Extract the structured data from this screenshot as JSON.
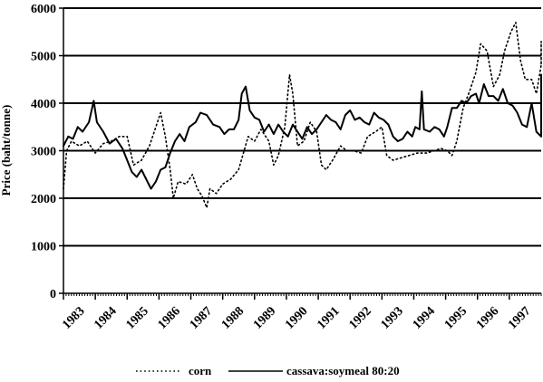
{
  "chart_data": {
    "type": "line",
    "ylabel": "Price (baht/tonne)",
    "xlabel": "",
    "ylim": [
      0,
      6000
    ],
    "yticks": [
      0,
      1000,
      2000,
      3000,
      4000,
      5000,
      6000
    ],
    "ytick_labels": [
      "0",
      "1000",
      "2000",
      "3000",
      "4000",
      "5000",
      "6000"
    ],
    "xlim": [
      1983,
      1998
    ],
    "xticks": [
      1983,
      1984,
      1985,
      1986,
      1987,
      1988,
      1989,
      1990,
      1991,
      1992,
      1993,
      1994,
      1995,
      1996,
      1997
    ],
    "xtick_labels": [
      "1983",
      "1984",
      "1985",
      "1986",
      "1987",
      "1988",
      "1989",
      "1990",
      "1991",
      "1992",
      "1993",
      "1994",
      "1995",
      "1996",
      "1997"
    ],
    "grid": "horizontal",
    "legend_position": "bottom",
    "series": [
      {
        "name": "corn",
        "style": "dotted",
        "color": "#000000",
        "points": [
          [
            1983.0,
            2200
          ],
          [
            1983.1,
            3000
          ],
          [
            1983.25,
            3200
          ],
          [
            1983.5,
            3100
          ],
          [
            1983.75,
            3200
          ],
          [
            1984.0,
            2950
          ],
          [
            1984.25,
            3150
          ],
          [
            1984.5,
            3200
          ],
          [
            1984.75,
            3300
          ],
          [
            1985.0,
            3300
          ],
          [
            1985.2,
            2700
          ],
          [
            1985.45,
            2800
          ],
          [
            1985.7,
            3100
          ],
          [
            1985.9,
            3500
          ],
          [
            1986.05,
            3800
          ],
          [
            1986.2,
            3300
          ],
          [
            1986.35,
            2600
          ],
          [
            1986.45,
            2000
          ],
          [
            1986.6,
            2350
          ],
          [
            1986.85,
            2300
          ],
          [
            1987.05,
            2500
          ],
          [
            1987.2,
            2200
          ],
          [
            1987.35,
            2050
          ],
          [
            1987.5,
            1800
          ],
          [
            1987.6,
            2200
          ],
          [
            1987.8,
            2100
          ],
          [
            1988.0,
            2300
          ],
          [
            1988.25,
            2400
          ],
          [
            1988.5,
            2600
          ],
          [
            1988.8,
            3300
          ],
          [
            1989.0,
            3200
          ],
          [
            1989.2,
            3450
          ],
          [
            1989.45,
            3200
          ],
          [
            1989.6,
            2700
          ],
          [
            1989.75,
            2900
          ],
          [
            1989.95,
            3500
          ],
          [
            1990.1,
            4600
          ],
          [
            1990.2,
            4200
          ],
          [
            1990.35,
            3100
          ],
          [
            1990.55,
            3200
          ],
          [
            1990.75,
            3600
          ],
          [
            1990.95,
            3400
          ],
          [
            1991.1,
            2700
          ],
          [
            1991.25,
            2600
          ],
          [
            1991.45,
            2800
          ],
          [
            1991.7,
            3100
          ],
          [
            1991.9,
            3000
          ],
          [
            1992.1,
            3000
          ],
          [
            1992.35,
            2950
          ],
          [
            1992.55,
            3300
          ],
          [
            1992.8,
            3400
          ],
          [
            1993.0,
            3500
          ],
          [
            1993.15,
            2900
          ],
          [
            1993.35,
            2800
          ],
          [
            1993.6,
            2850
          ],
          [
            1993.85,
            2900
          ],
          [
            1994.1,
            2950
          ],
          [
            1994.4,
            2950
          ],
          [
            1994.65,
            3000
          ],
          [
            1994.85,
            3050
          ],
          [
            1995.05,
            3000
          ],
          [
            1995.2,
            2900
          ],
          [
            1995.35,
            3200
          ],
          [
            1995.55,
            3900
          ],
          [
            1995.75,
            4250
          ],
          [
            1995.95,
            4650
          ],
          [
            1996.1,
            5250
          ],
          [
            1996.3,
            5100
          ],
          [
            1996.5,
            4350
          ],
          [
            1996.7,
            4600
          ],
          [
            1996.85,
            5100
          ],
          [
            1997.05,
            5500
          ],
          [
            1997.2,
            5700
          ],
          [
            1997.35,
            4900
          ],
          [
            1997.5,
            4500
          ],
          [
            1997.7,
            4500
          ],
          [
            1997.85,
            4200
          ],
          [
            1998.0,
            4800
          ],
          [
            1998.2,
            5300
          ],
          [
            1998.45,
            4800
          ]
        ]
      },
      {
        "name": "cassava:soymeal 80:20",
        "style": "solid",
        "color": "#000000",
        "points": [
          [
            1983.0,
            3100
          ],
          [
            1983.15,
            3300
          ],
          [
            1983.3,
            3250
          ],
          [
            1983.45,
            3500
          ],
          [
            1983.6,
            3400
          ],
          [
            1983.8,
            3600
          ],
          [
            1983.95,
            4050
          ],
          [
            1984.05,
            3600
          ],
          [
            1984.25,
            3400
          ],
          [
            1984.45,
            3150
          ],
          [
            1984.65,
            3250
          ],
          [
            1984.85,
            3050
          ],
          [
            1985.0,
            2800
          ],
          [
            1985.15,
            2550
          ],
          [
            1985.3,
            2450
          ],
          [
            1985.45,
            2600
          ],
          [
            1985.6,
            2400
          ],
          [
            1985.75,
            2200
          ],
          [
            1985.9,
            2350
          ],
          [
            1986.05,
            2600
          ],
          [
            1986.2,
            2650
          ],
          [
            1986.35,
            2950
          ],
          [
            1986.5,
            3200
          ],
          [
            1986.65,
            3350
          ],
          [
            1986.8,
            3200
          ],
          [
            1986.95,
            3500
          ],
          [
            1987.15,
            3600
          ],
          [
            1987.3,
            3800
          ],
          [
            1987.5,
            3750
          ],
          [
            1987.7,
            3550
          ],
          [
            1987.9,
            3500
          ],
          [
            1988.05,
            3350
          ],
          [
            1988.2,
            3450
          ],
          [
            1988.35,
            3450
          ],
          [
            1988.5,
            3650
          ],
          [
            1988.6,
            4200
          ],
          [
            1988.72,
            4350
          ],
          [
            1988.85,
            3850
          ],
          [
            1989.0,
            3700
          ],
          [
            1989.15,
            3650
          ],
          [
            1989.3,
            3400
          ],
          [
            1989.45,
            3550
          ],
          [
            1989.6,
            3350
          ],
          [
            1989.75,
            3550
          ],
          [
            1989.9,
            3400
          ],
          [
            1990.05,
            3300
          ],
          [
            1990.2,
            3550
          ],
          [
            1990.35,
            3400
          ],
          [
            1990.5,
            3250
          ],
          [
            1990.65,
            3500
          ],
          [
            1990.8,
            3350
          ],
          [
            1990.95,
            3450
          ],
          [
            1991.1,
            3600
          ],
          [
            1991.25,
            3750
          ],
          [
            1991.4,
            3650
          ],
          [
            1991.55,
            3600
          ],
          [
            1991.7,
            3450
          ],
          [
            1991.85,
            3750
          ],
          [
            1992.0,
            3850
          ],
          [
            1992.15,
            3650
          ],
          [
            1992.3,
            3700
          ],
          [
            1992.45,
            3600
          ],
          [
            1992.6,
            3550
          ],
          [
            1992.75,
            3800
          ],
          [
            1992.9,
            3700
          ],
          [
            1993.05,
            3650
          ],
          [
            1993.2,
            3550
          ],
          [
            1993.35,
            3300
          ],
          [
            1993.5,
            3200
          ],
          [
            1993.65,
            3250
          ],
          [
            1993.8,
            3400
          ],
          [
            1993.95,
            3300
          ],
          [
            1994.05,
            3500
          ],
          [
            1994.18,
            3450
          ],
          [
            1994.25,
            4250
          ],
          [
            1994.32,
            3450
          ],
          [
            1994.5,
            3400
          ],
          [
            1994.65,
            3500
          ],
          [
            1994.8,
            3450
          ],
          [
            1994.95,
            3300
          ],
          [
            1995.05,
            3500
          ],
          [
            1995.2,
            3900
          ],
          [
            1995.35,
            3900
          ],
          [
            1995.5,
            4050
          ],
          [
            1995.65,
            4000
          ],
          [
            1995.8,
            4150
          ],
          [
            1995.95,
            4200
          ],
          [
            1996.05,
            4000
          ],
          [
            1996.2,
            4400
          ],
          [
            1996.35,
            4150
          ],
          [
            1996.5,
            4150
          ],
          [
            1996.65,
            4050
          ],
          [
            1996.8,
            4300
          ],
          [
            1996.95,
            4000
          ],
          [
            1997.1,
            3950
          ],
          [
            1997.25,
            3800
          ],
          [
            1997.4,
            3550
          ],
          [
            1997.55,
            3500
          ],
          [
            1997.7,
            4000
          ],
          [
            1997.85,
            3400
          ],
          [
            1998.0,
            3300
          ],
          [
            1998.15,
            3950
          ],
          [
            1998.3,
            4400
          ],
          [
            1998.45,
            4600
          ]
        ]
      }
    ]
  },
  "legend": {
    "items": [
      {
        "label": "corn",
        "style": "dotted"
      },
      {
        "label": "cassava:soymeal 80:20",
        "style": "solid"
      }
    ]
  }
}
